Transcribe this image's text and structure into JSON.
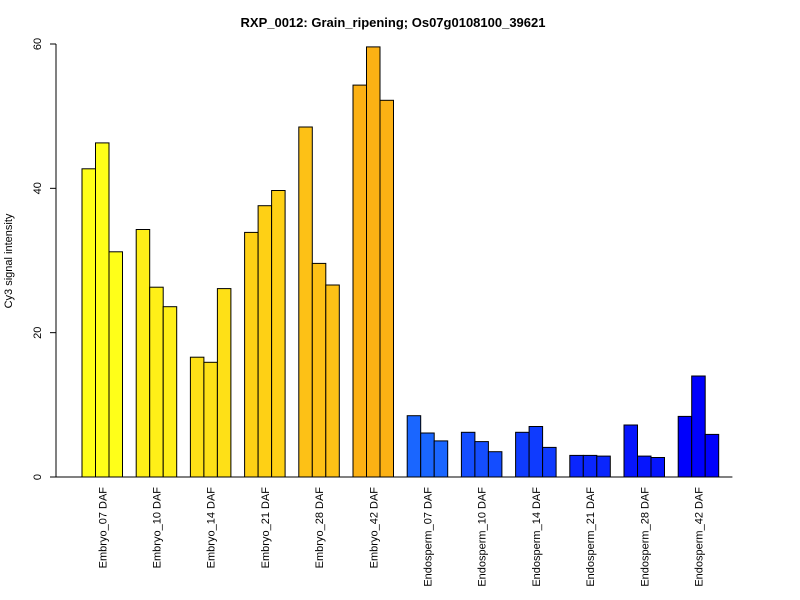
{
  "chart_data": {
    "type": "bar",
    "title": "RXP_0012: Grain_ripening; Os07g0108100_39621",
    "xlabel": "",
    "ylabel": "Cy3 signal intensity",
    "ylim": [
      0,
      60
    ],
    "yticks": [
      "0",
      "20",
      "40",
      "60"
    ],
    "grid": false,
    "categories": [
      "Embryo_07 DAF",
      "Embryo_10 DAF",
      "Embryo_14 DAF",
      "Embryo_21 DAF",
      "Embryo_28 DAF",
      "Embryo_42 DAF",
      "Endosperm_07 DAF",
      "Endosperm_10 DAF",
      "Endosperm_14 DAF",
      "Endosperm_21 DAF",
      "Endosperm_28 DAF",
      "Endosperm_42 DAF"
    ],
    "replicates_per_category": 3,
    "values": [
      [
        42.7,
        46.3,
        31.2
      ],
      [
        34.3,
        26.3,
        23.6
      ],
      [
        16.6,
        15.9,
        26.1
      ],
      [
        33.9,
        37.6,
        39.7
      ],
      [
        48.5,
        29.6,
        26.6
      ],
      [
        54.3,
        59.6,
        52.2
      ],
      [
        8.5,
        6.1,
        5.0
      ],
      [
        6.2,
        4.9,
        3.5
      ],
      [
        6.2,
        7.0,
        4.1
      ],
      [
        3.0,
        3.0,
        2.9
      ],
      [
        7.2,
        2.9,
        2.7
      ],
      [
        8.4,
        14.0,
        5.9
      ]
    ],
    "colors": [
      "#ffff19",
      "#ffef18",
      "#fee017",
      "#fed015",
      "#fdc116",
      "#fcb114",
      "#1a66ff",
      "#144dff",
      "#0f3bfe",
      "#0a26fd",
      "#0615fd",
      "#0000fc"
    ]
  }
}
